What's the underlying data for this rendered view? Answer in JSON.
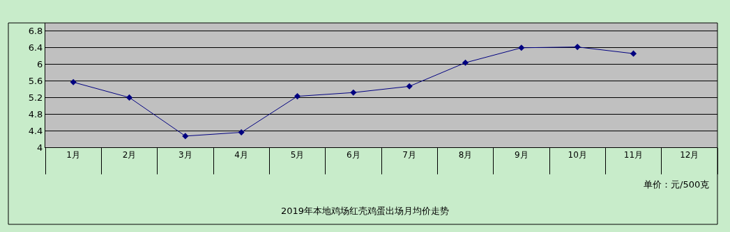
{
  "chart_data": {
    "type": "line",
    "title": "2019年本地鸡场红壳鸡蛋出场月均价走势",
    "categories": [
      "1月",
      "2月",
      "3月",
      "4月",
      "5月",
      "6月",
      "7月",
      "8月",
      "9月",
      "10月",
      "11月",
      "12月"
    ],
    "series": [
      {
        "color": "#000080",
        "values": [
          5.57,
          5.2,
          4.27,
          4.36,
          5.23,
          5.32,
          5.47,
          6.04,
          6.4,
          6.42,
          6.26,
          null
        ]
      }
    ],
    "ylim": [
      4,
      7
    ],
    "yticks": [
      4,
      4.4,
      4.8,
      5.2,
      5.6,
      6,
      6.4,
      6.8
    ],
    "annotations": [
      "单价：元/500克"
    ],
    "grid": "y",
    "legend": false,
    "marker": "diamond",
    "line_style": "solid"
  }
}
